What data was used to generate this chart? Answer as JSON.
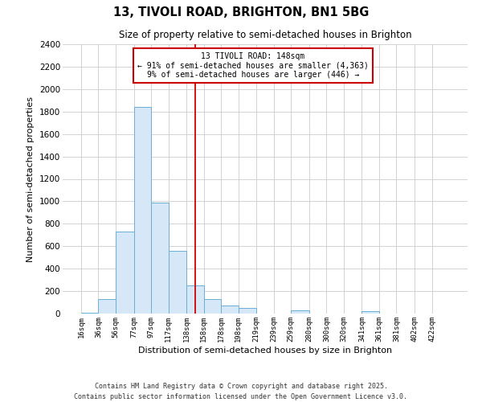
{
  "title": "13, TIVOLI ROAD, BRIGHTON, BN1 5BG",
  "subtitle": "Size of property relative to semi-detached houses in Brighton",
  "xlabel": "Distribution of semi-detached houses by size in Brighton",
  "ylabel": "Number of semi-detached properties",
  "bin_labels": [
    "16sqm",
    "36sqm",
    "56sqm",
    "77sqm",
    "97sqm",
    "117sqm",
    "138sqm",
    "158sqm",
    "178sqm",
    "198sqm",
    "219sqm",
    "239sqm",
    "259sqm",
    "280sqm",
    "300sqm",
    "320sqm",
    "341sqm",
    "361sqm",
    "381sqm",
    "402sqm",
    "422sqm"
  ],
  "bin_edges": [
    16,
    36,
    56,
    77,
    97,
    117,
    138,
    158,
    178,
    198,
    219,
    239,
    259,
    280,
    300,
    320,
    341,
    361,
    381,
    402,
    422
  ],
  "bar_heights": [
    10,
    130,
    730,
    1840,
    990,
    560,
    250,
    130,
    70,
    50,
    0,
    0,
    30,
    0,
    0,
    0,
    20,
    0,
    0,
    0,
    0
  ],
  "bar_color": "#d6e8f7",
  "bar_edge_color": "#6aaed6",
  "vline_x": 148,
  "vline_color": "#cc0000",
  "annotation_line1": "13 TIVOLI ROAD: 148sqm",
  "annotation_line2": "← 91% of semi-detached houses are smaller (4,363)",
  "annotation_line3": "9% of semi-detached houses are larger (446) →",
  "annotation_box_color": "#ffffff",
  "annotation_box_edge": "#cc0000",
  "ylim": [
    0,
    2400
  ],
  "yticks": [
    0,
    200,
    400,
    600,
    800,
    1000,
    1200,
    1400,
    1600,
    1800,
    2000,
    2200,
    2400
  ],
  "background_color": "#ffffff",
  "grid_color": "#cccccc",
  "footer_line1": "Contains HM Land Registry data © Crown copyright and database right 2025.",
  "footer_line2": "Contains public sector information licensed under the Open Government Licence v3.0."
}
